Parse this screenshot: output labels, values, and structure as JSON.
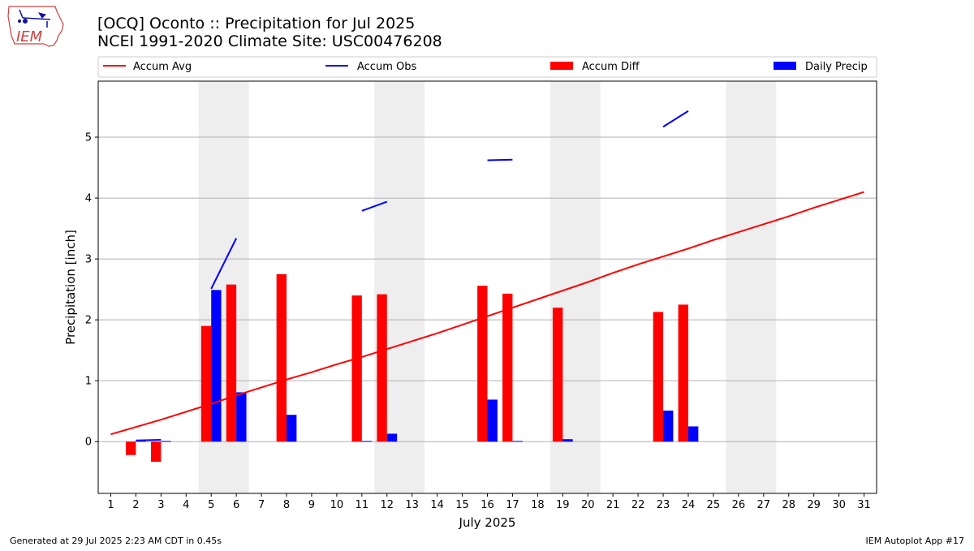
{
  "header": {
    "title_line1": "[OCQ] Oconto :: Precipitation for Jul 2025",
    "title_line2": "NCEI 1991-2020 Climate Site: USC00476208",
    "logo_text": "IEM"
  },
  "footer": {
    "left": "Generated at 29 Jul 2025 2:23 AM CDT in 0.45s",
    "right": "IEM Autoplot App #17"
  },
  "colors": {
    "accum_avg": "#ff0000",
    "accum_obs": "#0000ff",
    "accum_diff": "#ff0000",
    "daily_precip": "#0000ff",
    "weekend_shade": "#eeeeee",
    "grid": "#b0b0b0"
  },
  "chart_data": {
    "type": "bar",
    "title": "[OCQ] Oconto :: Precipitation for Jul 2025",
    "xlabel": "July 2025",
    "ylabel": "Precipitation [inch]",
    "xlim": [
      0.5,
      31.5
    ],
    "ylim": [
      -0.85,
      5.92
    ],
    "yticks": [
      0,
      1,
      2,
      3,
      4,
      5
    ],
    "x": [
      1,
      2,
      3,
      4,
      5,
      6,
      7,
      8,
      9,
      10,
      11,
      12,
      13,
      14,
      15,
      16,
      17,
      18,
      19,
      20,
      21,
      22,
      23,
      24,
      25,
      26,
      27,
      28,
      29,
      30,
      31
    ],
    "grid": "horizontal",
    "legend_position": "top",
    "legend": [
      "Accum Avg",
      "Accum Obs",
      "Accum Diff",
      "Daily Precip"
    ],
    "weekends": [
      [
        5,
        6
      ],
      [
        12,
        13
      ],
      [
        19,
        20
      ],
      [
        26,
        27
      ]
    ],
    "accum_avg": [
      0.12,
      0.24,
      0.36,
      0.49,
      0.62,
      0.76,
      0.89,
      1.02,
      1.14,
      1.27,
      1.39,
      1.52,
      1.65,
      1.78,
      1.92,
      2.06,
      2.2,
      2.34,
      2.48,
      2.62,
      2.77,
      2.91,
      3.04,
      3.17,
      3.31,
      3.44,
      3.57,
      3.7,
      3.84,
      3.97,
      4.1
    ],
    "accum_obs_segments": [
      [
        [
          2,
          0.02
        ],
        [
          3,
          0.03
        ]
      ],
      [
        [
          5,
          2.51
        ],
        [
          6,
          3.34
        ]
      ],
      [
        [
          11,
          3.79
        ],
        [
          12,
          3.94
        ]
      ],
      [
        [
          16,
          4.62
        ],
        [
          17,
          4.63
        ]
      ],
      [
        [
          23,
          5.17
        ],
        [
          24,
          5.43
        ]
      ]
    ],
    "accum_diff": [
      {
        "day": 2,
        "value": -0.22
      },
      {
        "day": 3,
        "value": -0.33
      },
      {
        "day": 5,
        "value": 1.9
      },
      {
        "day": 6,
        "value": 2.58
      },
      {
        "day": 8,
        "value": 2.75
      },
      {
        "day": 11,
        "value": 2.4
      },
      {
        "day": 12,
        "value": 2.42
      },
      {
        "day": 16,
        "value": 2.56
      },
      {
        "day": 17,
        "value": 2.43
      },
      {
        "day": 19,
        "value": 2.2
      },
      {
        "day": 23,
        "value": 2.13
      },
      {
        "day": 24,
        "value": 2.25
      }
    ],
    "daily_precip": [
      {
        "day": 2,
        "value": 0.02
      },
      {
        "day": 3,
        "value": 0.01
      },
      {
        "day": 5,
        "value": 2.49
      },
      {
        "day": 6,
        "value": 0.81
      },
      {
        "day": 8,
        "value": 0.44
      },
      {
        "day": 11,
        "value": 0.01
      },
      {
        "day": 12,
        "value": 0.13
      },
      {
        "day": 16,
        "value": 0.69
      },
      {
        "day": 17,
        "value": 0.01
      },
      {
        "day": 19,
        "value": 0.04
      },
      {
        "day": 23,
        "value": 0.51
      },
      {
        "day": 24,
        "value": 0.25
      }
    ]
  }
}
